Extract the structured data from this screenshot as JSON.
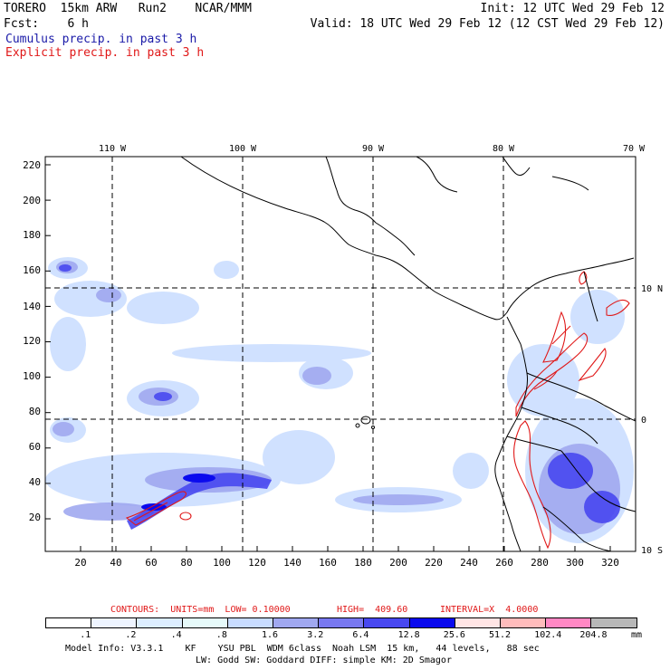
{
  "header": {
    "line1_left": "TORERO  15km ARW   Run2    NCAR/MMM",
    "line1_right": "Init: 12 UTC Wed 29 Feb 12",
    "line2_left": "Fcst:    6 h",
    "line2_right": "Valid: 18 UTC Wed 29 Feb 12 (12 CST Wed 29 Feb 12)",
    "legend_cumulus": "Cumulus precip. in past 3 h",
    "legend_explicit": "Explicit precip. in past 3 h"
  },
  "map": {
    "lon_labels": [
      "110 W",
      "100 W",
      "90 W",
      "80 W",
      "70 W"
    ],
    "lat_labels": [
      "10 N",
      "0",
      "10 S"
    ],
    "y_ticks": [
      "220",
      "200",
      "180",
      "160",
      "140",
      "120",
      "100",
      "80",
      "60",
      "40",
      "20"
    ],
    "x_ticks": [
      "20",
      "40",
      "60",
      "80",
      "100",
      "120",
      "140",
      "160",
      "180",
      "200",
      "220",
      "240",
      "260",
      "280",
      "300",
      "320"
    ]
  },
  "contours_line": {
    "units_label": "CONTOURS:  UNITS=mm  LOW= 0.10000",
    "high_label": "HIGH=  409.60",
    "interval_label": "INTERVAL=X  4.0000"
  },
  "colorbar": {
    "colors": [
      "#ffffff",
      "#eef4ff",
      "#ddeeff",
      "#e6fafa",
      "#c8dcff",
      "#a0a8f0",
      "#7878f0",
      "#4848f0",
      "#0a0aee",
      "#ffe4e4",
      "#ffbcbc",
      "#ff88c4",
      "#b8b8b8",
      "#606060",
      "#303030",
      "#d8a8f8"
    ],
    "labels": [
      ".1",
      ".2",
      ".4",
      ".8",
      "1.6",
      "3.2",
      "6.4",
      "12.8",
      "25.6",
      "51.2",
      "102.4",
      "204.8"
    ],
    "unit": "mm"
  },
  "footer": {
    "line1": "Model Info: V3.3.1    KF    YSU PBL  WDM 6class  Noah LSM  15 km,   44 levels,   88 sec",
    "line2": "LW: Godd SW: Goddard DIFF: simple KM: 2D Smagor"
  }
}
